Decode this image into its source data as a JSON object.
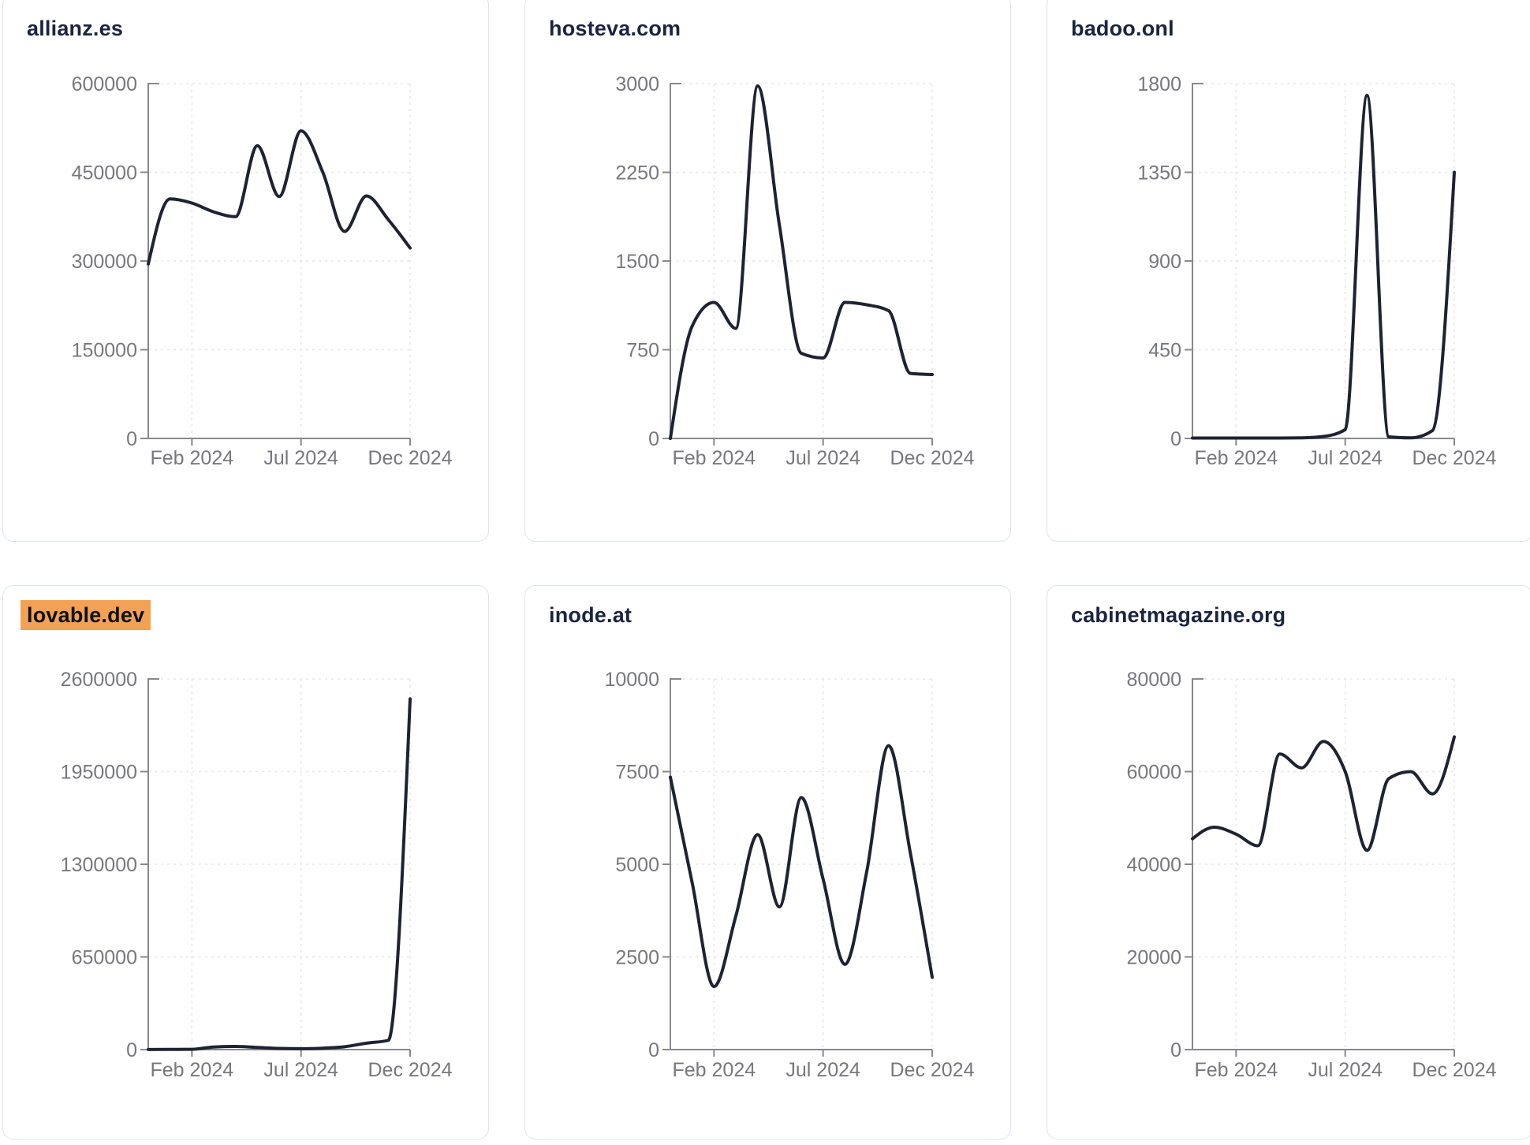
{
  "colors": {
    "line": "#1e2333",
    "axis": "#87898d",
    "tick_label": "#77787d",
    "gridline": "#e7e7ea",
    "title": "#1b2440",
    "card_border": "#dde4ee",
    "highlight_background": "#f2a155",
    "highlight_text": "#0f1115",
    "page_background": "#ffffff"
  },
  "months": [
    "Dec 2023",
    "Jan 2024",
    "Feb 2024",
    "Mar 2024",
    "Apr 2024",
    "May 2024",
    "Jun 2024",
    "Jul 2024",
    "Aug 2024",
    "Sep 2024",
    "Oct 2024",
    "Nov 2024",
    "Dec 2024"
  ],
  "chart_data": [
    {
      "type": "line",
      "title": "allianz.es",
      "highlighted": false,
      "x": [
        "Dec 2023",
        "Jan 2024",
        "Feb 2024",
        "Mar 2024",
        "Apr 2024",
        "May 2024",
        "Jun 2024",
        "Jul 2024",
        "Aug 2024",
        "Sep 2024",
        "Oct 2024",
        "Nov 2024",
        "Dec 2024"
      ],
      "values": [
        295000,
        405000,
        398000,
        383000,
        375000,
        495000,
        409000,
        520000,
        450000,
        350000,
        410000,
        370000,
        322000
      ],
      "y_ticks": [
        0,
        150000,
        300000,
        450000,
        600000
      ],
      "ylim": [
        0,
        600000
      ],
      "x_tick_labels": [
        "Feb 2024",
        "Jul 2024",
        "Dec 2024"
      ],
      "x_tick_indices": [
        2,
        7,
        12
      ],
      "grid": true,
      "legend": "none"
    },
    {
      "type": "line",
      "title": "hosteva.com",
      "highlighted": false,
      "x": [
        "Dec 2023",
        "Jan 2024",
        "Feb 2024",
        "Mar 2024",
        "Apr 2024",
        "May 2024",
        "Jun 2024",
        "Jul 2024",
        "Aug 2024",
        "Sep 2024",
        "Oct 2024",
        "Nov 2024",
        "Dec 2024"
      ],
      "values": [
        0,
        950,
        1150,
        930,
        2980,
        1800,
        720,
        680,
        1150,
        1130,
        1080,
        550,
        540
      ],
      "y_ticks": [
        0,
        750,
        1500,
        2250,
        3000
      ],
      "ylim": [
        0,
        3000
      ],
      "x_tick_labels": [
        "Feb 2024",
        "Jul 2024",
        "Dec 2024"
      ],
      "x_tick_indices": [
        2,
        7,
        12
      ],
      "grid": true,
      "legend": "none"
    },
    {
      "type": "line",
      "title": "badoo.onl",
      "highlighted": false,
      "x": [
        "Dec 2023",
        "Jan 2024",
        "Feb 2024",
        "Mar 2024",
        "Apr 2024",
        "May 2024",
        "Jun 2024",
        "Jul 2024",
        "Aug 2024",
        "Sep 2024",
        "Oct 2024",
        "Nov 2024",
        "Dec 2024"
      ],
      "values": [
        2,
        2,
        2,
        2,
        2,
        3,
        10,
        45,
        1740,
        8,
        3,
        40,
        1350
      ],
      "y_ticks": [
        0,
        450,
        900,
        1350,
        1800
      ],
      "ylim": [
        0,
        1800
      ],
      "x_tick_labels": [
        "Feb 2024",
        "Jul 2024",
        "Dec 2024"
      ],
      "x_tick_indices": [
        2,
        7,
        12
      ],
      "grid": true,
      "legend": "none"
    },
    {
      "type": "line",
      "title": "lovable.dev",
      "highlighted": true,
      "x": [
        "Dec 2023",
        "Jan 2024",
        "Feb 2024",
        "Mar 2024",
        "Apr 2024",
        "May 2024",
        "Jun 2024",
        "Jul 2024",
        "Aug 2024",
        "Sep 2024",
        "Oct 2024",
        "Nov 2024",
        "Dec 2024"
      ],
      "values": [
        1000,
        1500,
        2000,
        18000,
        22000,
        15000,
        8000,
        6000,
        10000,
        20000,
        45000,
        65000,
        2460000
      ],
      "y_ticks": [
        0,
        650000,
        1300000,
        1950000,
        2600000
      ],
      "ylim": [
        0,
        2600000
      ],
      "x_tick_labels": [
        "Feb 2024",
        "Jul 2024",
        "Dec 2024"
      ],
      "x_tick_indices": [
        2,
        7,
        12
      ],
      "grid": true,
      "legend": "none"
    },
    {
      "type": "line",
      "title": "inode.at",
      "highlighted": false,
      "x": [
        "Dec 2023",
        "Jan 2024",
        "Feb 2024",
        "Mar 2024",
        "Apr 2024",
        "May 2024",
        "Jun 2024",
        "Jul 2024",
        "Aug 2024",
        "Sep 2024",
        "Oct 2024",
        "Nov 2024",
        "Dec 2024"
      ],
      "values": [
        7350,
        4500,
        1700,
        3600,
        5800,
        3850,
        6800,
        4600,
        2300,
        4800,
        8200,
        5300,
        1950
      ],
      "y_ticks": [
        0,
        2500,
        5000,
        7500,
        10000
      ],
      "ylim": [
        0,
        10000
      ],
      "x_tick_labels": [
        "Feb 2024",
        "Jul 2024",
        "Dec 2024"
      ],
      "x_tick_indices": [
        2,
        7,
        12
      ],
      "grid": true,
      "legend": "none"
    },
    {
      "type": "line",
      "title": "cabinetmagazine.org",
      "highlighted": false,
      "x": [
        "Dec 2023",
        "Jan 2024",
        "Feb 2024",
        "Mar 2024",
        "Apr 2024",
        "May 2024",
        "Jun 2024",
        "Jul 2024",
        "Aug 2024",
        "Sep 2024",
        "Oct 2024",
        "Nov 2024",
        "Dec 2024"
      ],
      "values": [
        45500,
        48000,
        46500,
        44000,
        63800,
        60800,
        66500,
        60000,
        43000,
        58500,
        60000,
        55200,
        67500
      ],
      "y_ticks": [
        0,
        20000,
        40000,
        60000,
        80000
      ],
      "ylim": [
        0,
        80000
      ],
      "x_tick_labels": [
        "Feb 2024",
        "Jul 2024",
        "Dec 2024"
      ],
      "x_tick_indices": [
        2,
        7,
        12
      ],
      "grid": true,
      "legend": "none"
    }
  ]
}
